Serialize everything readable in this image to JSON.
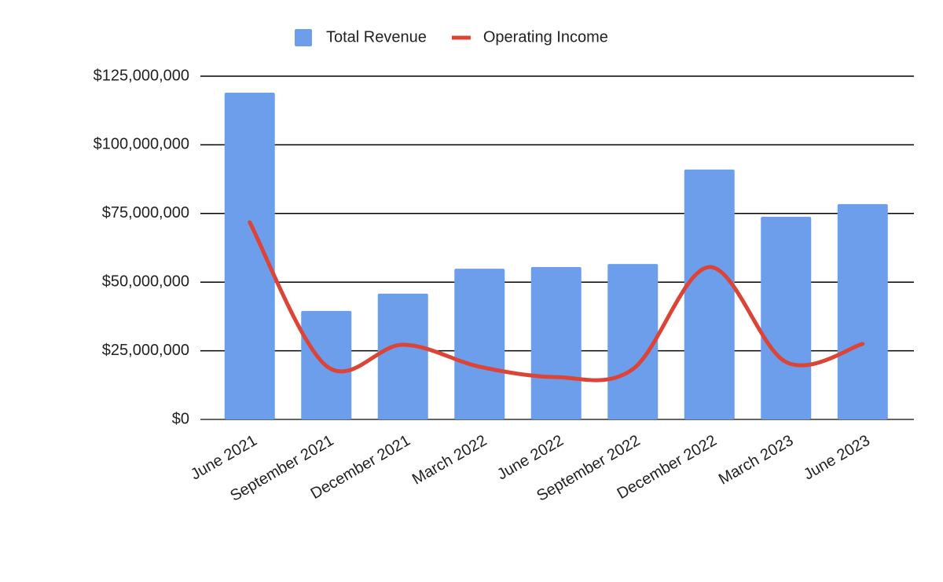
{
  "chart_data": {
    "type": "combo",
    "categories": [
      "June 2021",
      "September 2021",
      "December 2021",
      "March 2022",
      "June 2022",
      "September 2022",
      "December 2022",
      "March 2023",
      "June 2023"
    ],
    "series": [
      {
        "name": "Total Revenue",
        "type": "bar",
        "color": "#6d9eeb",
        "values": [
          119000000,
          39500000,
          45800000,
          54900000,
          55500000,
          56600000,
          91000000,
          73800000,
          78400000
        ]
      },
      {
        "name": "Operating Income",
        "type": "line",
        "smooth": true,
        "color": "#db4437",
        "values": [
          71800000,
          19500000,
          27200000,
          19200000,
          15400000,
          18300000,
          55500000,
          20900000,
          27500000
        ]
      }
    ],
    "ylim": [
      0,
      125000000
    ],
    "yticks": [
      {
        "value": 0,
        "label": "$0"
      },
      {
        "value": 25000000,
        "label": "$25,000,000"
      },
      {
        "value": 50000000,
        "label": "$50,000,000"
      },
      {
        "value": 75000000,
        "label": "$75,000,000"
      },
      {
        "value": 100000000,
        "label": "$100,000,000"
      },
      {
        "value": 125000000,
        "label": "$125,000,000"
      }
    ],
    "grid": true,
    "legend": "top"
  }
}
